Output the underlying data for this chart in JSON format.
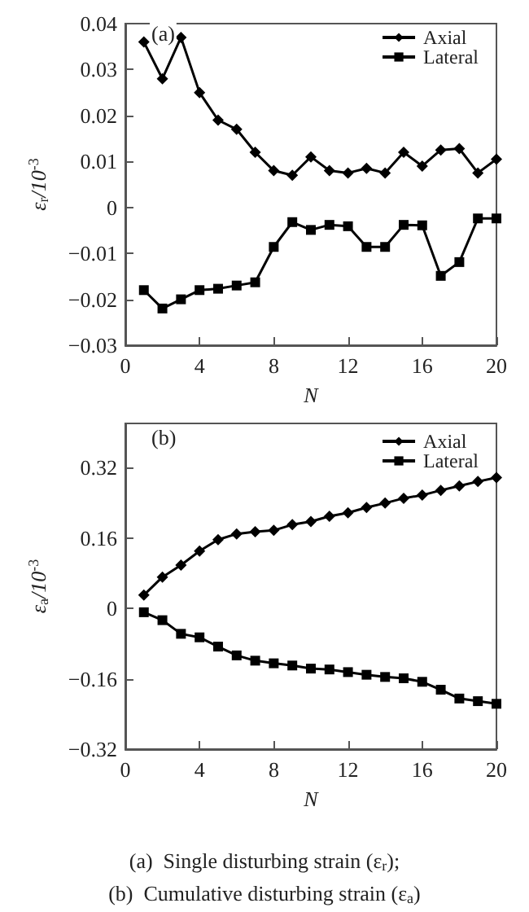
{
  "chart_data": [
    {
      "type": "line",
      "title": "(a)",
      "xlabel": "N",
      "ylabel": "ε$_{r}$/10$^{-3}$",
      "x": [
        1,
        2,
        3,
        4,
        5,
        6,
        7,
        8,
        9,
        10,
        11,
        12,
        13,
        14,
        15,
        16,
        17,
        18,
        19,
        20
      ],
      "xlim": [
        0,
        20
      ],
      "xticks": [
        0,
        4,
        8,
        12,
        16,
        20
      ],
      "ylim": [
        -0.03,
        0.04
      ],
      "yticks": [
        -0.03,
        -0.02,
        -0.01,
        0,
        0.01,
        0.02,
        0.03,
        0.04
      ],
      "legend": "top right",
      "grid": false,
      "line_style": "solid",
      "series": [
        {
          "name": "Axial",
          "color": "#000000",
          "marker": "diamond",
          "values": [
            0.036,
            0.028,
            0.037,
            0.025,
            0.019,
            0.017,
            0.012,
            0.008,
            0.007,
            0.011,
            0.008,
            0.0075,
            0.0085,
            0.0075,
            0.012,
            0.009,
            0.0125,
            0.0128,
            0.0075,
            0.0105
          ]
        },
        {
          "name": "Lateral",
          "color": "#000000",
          "marker": "square",
          "values": [
            -0.018,
            -0.022,
            -0.02,
            -0.018,
            -0.0177,
            -0.017,
            -0.0163,
            -0.0086,
            -0.0032,
            -0.0049,
            -0.0038,
            -0.0041,
            -0.0086,
            -0.0086,
            -0.0038,
            -0.0039,
            -0.0149,
            -0.0119,
            -0.0024,
            -0.0024
          ]
        }
      ]
    },
    {
      "type": "line",
      "title": "(b)",
      "xlabel": "N",
      "ylabel": "ε$_{a}$/10$^{-3}$",
      "x": [
        1,
        2,
        3,
        4,
        5,
        6,
        7,
        8,
        9,
        10,
        11,
        12,
        13,
        14,
        15,
        16,
        17,
        18,
        19,
        20
      ],
      "xlim": [
        0,
        20
      ],
      "xticks": [
        0,
        4,
        8,
        12,
        16,
        20
      ],
      "ylim": [
        -0.32,
        0.42
      ],
      "yticks": [
        -0.32,
        -0.16,
        0,
        0.16,
        0.32
      ],
      "legend": "top right",
      "grid": false,
      "line_style": "solid",
      "annotations": [
        "(a)  Single disturbing strain (ε$_{r}$);",
        "(b)  Cumulative disturbing strain (ε$_{a}$)"
      ],
      "series": [
        {
          "name": "Axial",
          "color": "#000000",
          "marker": "diamond",
          "values": [
            0.03,
            0.071,
            0.098,
            0.13,
            0.156,
            0.169,
            0.174,
            0.177,
            0.19,
            0.197,
            0.209,
            0.217,
            0.229,
            0.239,
            0.25,
            0.257,
            0.268,
            0.278,
            0.288,
            0.297
          ]
        },
        {
          "name": "Lateral",
          "color": "#000000",
          "marker": "square",
          "values": [
            -0.009,
            -0.027,
            -0.058,
            -0.066,
            -0.087,
            -0.107,
            -0.119,
            -0.125,
            -0.13,
            -0.137,
            -0.139,
            -0.145,
            -0.151,
            -0.156,
            -0.159,
            -0.167,
            -0.185,
            -0.205,
            -0.211,
            -0.217
          ]
        }
      ]
    }
  ]
}
